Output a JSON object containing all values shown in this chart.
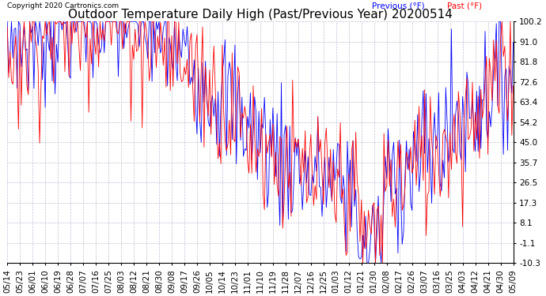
{
  "title": "Outdoor Temperature Daily High (Past/Previous Year) 20200514",
  "copyright": "Copyright 2020 Cartronics.com",
  "legend_previous": "Previous (°F)",
  "legend_past": "Past (°F)",
  "color_previous": "blue",
  "color_past": "red",
  "yticks": [
    100.2,
    91.0,
    81.8,
    72.6,
    63.4,
    54.2,
    45.0,
    35.7,
    26.5,
    17.3,
    8.1,
    -1.1,
    -10.3
  ],
  "ylim": [
    -10.3,
    100.2
  ],
  "background_color": "#ffffff",
  "grid_color": "#b0b0cc",
  "title_fontsize": 11,
  "tick_fontsize": 7.5,
  "dates": [
    "05/14",
    "05/23",
    "06/01",
    "06/10",
    "06/19",
    "06/28",
    "07/07",
    "07/16",
    "07/25",
    "08/03",
    "08/12",
    "08/21",
    "08/30",
    "09/08",
    "09/17",
    "09/26",
    "10/05",
    "10/14",
    "10/23",
    "11/01",
    "11/10",
    "11/19",
    "11/28",
    "12/07",
    "12/16",
    "12/25",
    "01/03",
    "01/12",
    "01/21",
    "01/30",
    "02/08",
    "02/17",
    "02/26",
    "03/07",
    "03/16",
    "03/25",
    "04/03",
    "04/12",
    "04/21",
    "04/30",
    "05/09"
  ]
}
